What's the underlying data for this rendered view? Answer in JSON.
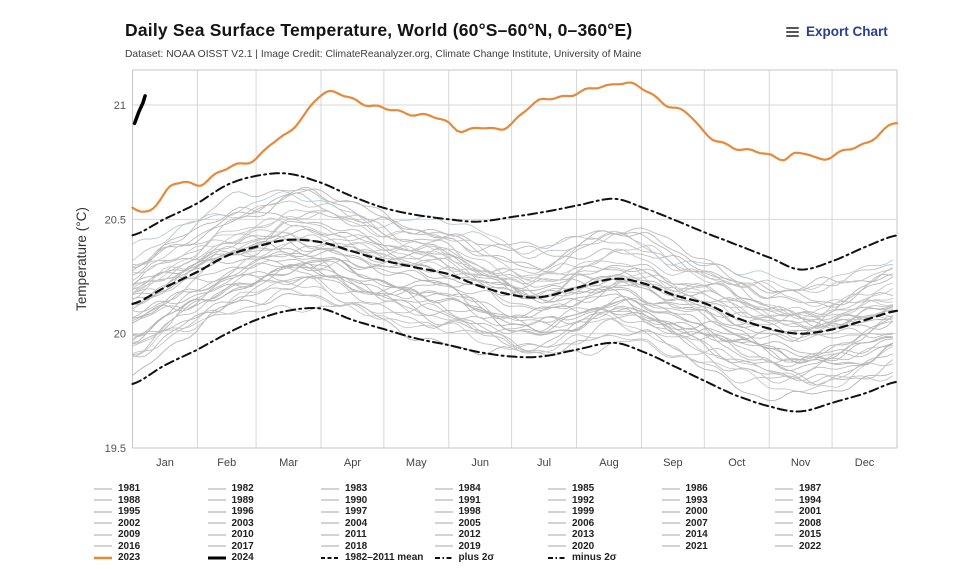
{
  "header": {
    "title": "Daily Sea Surface Temperature, World (60°S–60°N, 0–360°E)",
    "subtitle": "Dataset: NOAA OISST V2.1 | Image Credit: ClimateReanalyzer.org, Climate Change Institute, University of Maine",
    "export_label": "Export Chart"
  },
  "chart_data": {
    "type": "line",
    "title": "Daily Sea Surface Temperature, World (60°S–60°N, 0–360°E)",
    "ylabel": "Temperature (°C)",
    "ylim": [
      19.5,
      21.17
    ],
    "grid": true,
    "y_ticks": [
      {
        "value": 21,
        "label": "21"
      },
      {
        "value": 20.5,
        "label": "20.5"
      },
      {
        "value": 20,
        "label": "20"
      },
      {
        "value": 19.5,
        "label": "19.5"
      }
    ],
    "x_tick_labels": [
      "Jan",
      "Feb",
      "Mar",
      "Apr",
      "May",
      "Jun",
      "Jul",
      "Aug",
      "Sep",
      "Oct",
      "Nov",
      "Dec"
    ],
    "month_start_days": [
      0,
      31,
      59,
      90,
      120,
      151,
      181,
      212,
      243,
      273,
      304,
      334,
      365
    ],
    "colors": {
      "orange_2023": "#e5893a",
      "black_2024": "#000000",
      "dashed_black": "#111111",
      "year_gray": "#c6c6c6",
      "year_2016_tint": "#b9cbdd",
      "grid_interior": "#d7d7d7",
      "grid_border": "#c6c6c6",
      "tick_text": "#555555",
      "month_text": "#444444",
      "axis_title_text": "#333333"
    },
    "series": [
      {
        "name": "2023",
        "style": "solid",
        "color": "#e5893a",
        "width": 2.2,
        "days": [
          0,
          4,
          8,
          13,
          18,
          24,
          31,
          38,
          45,
          52,
          59,
          66,
          74,
          82,
          89,
          96,
          105,
          113,
          121,
          129,
          142,
          151,
          157,
          165,
          172,
          179,
          188,
          196,
          205,
          212,
          220,
          228,
          232,
          238,
          247,
          256,
          265,
          273,
          281,
          290,
          298,
          303,
          311,
          316,
          322,
          327,
          332,
          341,
          351,
          359,
          365
        ],
        "values": [
          20.55,
          20.53,
          20.54,
          20.59,
          20.64,
          20.66,
          20.65,
          20.69,
          20.72,
          20.74,
          20.77,
          20.83,
          20.87,
          20.96,
          21.04,
          21.05,
          21.03,
          21.0,
          20.98,
          20.97,
          20.95,
          20.92,
          20.89,
          20.9,
          20.89,
          20.91,
          20.98,
          21.02,
          21.04,
          21.05,
          21.07,
          21.09,
          21.1,
          21.09,
          21.05,
          21.0,
          20.96,
          20.88,
          20.84,
          20.8,
          20.8,
          20.79,
          20.76,
          20.78,
          20.79,
          20.77,
          20.77,
          20.8,
          20.84,
          20.89,
          20.92
        ]
      },
      {
        "name": "2024",
        "style": "solid",
        "color": "#000000",
        "width": 3.5,
        "days": [
          1,
          3,
          5,
          6
        ],
        "values": [
          20.92,
          20.97,
          21.01,
          21.04
        ]
      },
      {
        "name": "1982–2011 mean",
        "style": "dashed",
        "color": "#111111",
        "width": 2.2,
        "days": [
          0,
          15,
          31,
          45,
          59,
          74,
          90,
          105,
          120,
          135,
          151,
          165,
          181,
          195,
          212,
          230,
          244,
          258,
          274,
          288,
          305,
          319,
          335,
          350,
          365
        ],
        "values": [
          20.13,
          20.2,
          20.27,
          20.34,
          20.38,
          20.41,
          20.4,
          20.36,
          20.32,
          20.29,
          20.26,
          20.21,
          20.17,
          20.16,
          20.2,
          20.24,
          20.22,
          20.17,
          20.13,
          20.07,
          20.02,
          20.0,
          20.02,
          20.06,
          20.1
        ]
      },
      {
        "name": "plus 2σ",
        "style": "dashdot",
        "color": "#111111",
        "width": 2,
        "days": [
          0,
          15,
          31,
          45,
          59,
          74,
          90,
          105,
          120,
          135,
          151,
          165,
          181,
          195,
          212,
          230,
          244,
          258,
          274,
          288,
          305,
          319,
          335,
          350,
          365
        ],
        "values": [
          20.43,
          20.5,
          20.57,
          20.65,
          20.69,
          20.7,
          20.66,
          20.6,
          20.55,
          20.52,
          20.5,
          20.49,
          20.51,
          20.53,
          20.56,
          20.59,
          20.55,
          20.5,
          20.44,
          20.39,
          20.33,
          20.28,
          20.32,
          20.38,
          20.43
        ]
      },
      {
        "name": "minus 2σ",
        "style": "dashdot",
        "color": "#111111",
        "width": 2,
        "days": [
          0,
          15,
          31,
          45,
          59,
          74,
          90,
          105,
          120,
          135,
          151,
          165,
          181,
          195,
          212,
          230,
          244,
          258,
          274,
          288,
          305,
          319,
          335,
          350,
          365
        ],
        "values": [
          19.78,
          19.86,
          19.93,
          20.0,
          20.06,
          20.1,
          20.11,
          20.06,
          20.02,
          19.98,
          19.95,
          19.92,
          19.9,
          19.9,
          19.93,
          19.96,
          19.92,
          19.86,
          19.79,
          19.73,
          19.68,
          19.66,
          19.7,
          19.74,
          19.79
        ]
      }
    ],
    "background_years": {
      "note": "annual offset (°C) relative to 1982–2011 mean seasonal curve",
      "years": [
        {
          "year": 1981,
          "offset": -0.18
        },
        {
          "year": 1982,
          "offset": -0.22
        },
        {
          "year": 1983,
          "offset": -0.12
        },
        {
          "year": 1984,
          "offset": -0.25
        },
        {
          "year": 1985,
          "offset": -0.26
        },
        {
          "year": 1986,
          "offset": -0.19
        },
        {
          "year": 1987,
          "offset": -0.1
        },
        {
          "year": 1988,
          "offset": -0.16
        },
        {
          "year": 1989,
          "offset": -0.22
        },
        {
          "year": 1990,
          "offset": -0.12
        },
        {
          "year": 1991,
          "offset": -0.11
        },
        {
          "year": 1992,
          "offset": -0.18
        },
        {
          "year": 1993,
          "offset": -0.14
        },
        {
          "year": 1994,
          "offset": -0.12
        },
        {
          "year": 1995,
          "offset": -0.06
        },
        {
          "year": 1996,
          "offset": -0.13
        },
        {
          "year": 1997,
          "offset": -0.02
        },
        {
          "year": 1998,
          "offset": 0.04
        },
        {
          "year": 1999,
          "offset": -0.11
        },
        {
          "year": 2000,
          "offset": -0.09
        },
        {
          "year": 2001,
          "offset": -0.02
        },
        {
          "year": 2002,
          "offset": 0.02
        },
        {
          "year": 2003,
          "offset": 0.04
        },
        {
          "year": 2004,
          "offset": 0.03
        },
        {
          "year": 2005,
          "offset": 0.05
        },
        {
          "year": 2006,
          "offset": 0.04
        },
        {
          "year": 2007,
          "offset": 0.01
        },
        {
          "year": 2008,
          "offset": -0.01
        },
        {
          "year": 2009,
          "offset": 0.05
        },
        {
          "year": 2010,
          "offset": 0.08
        },
        {
          "year": 2011,
          "offset": -0.03
        },
        {
          "year": 2012,
          "offset": 0.02
        },
        {
          "year": 2013,
          "offset": 0.06
        },
        {
          "year": 2014,
          "offset": 0.1
        },
        {
          "year": 2015,
          "offset": 0.16
        },
        {
          "year": 2016,
          "offset": 0.2
        },
        {
          "year": 2017,
          "offset": 0.16
        },
        {
          "year": 2018,
          "offset": 0.12
        },
        {
          "year": 2019,
          "offset": 0.17
        },
        {
          "year": 2020,
          "offset": 0.2
        },
        {
          "year": 2021,
          "offset": 0.13
        },
        {
          "year": 2022,
          "offset": 0.17
        }
      ]
    }
  },
  "legend": {
    "year_rows": [
      [
        "1981",
        "1982",
        "1983",
        "1984",
        "1985",
        "1986",
        "1987"
      ],
      [
        "1988",
        "1989",
        "1990",
        "1991",
        "1992",
        "1993",
        "1994"
      ],
      [
        "1995",
        "1996",
        "1997",
        "1998",
        "1999",
        "2000",
        "2001"
      ],
      [
        "2002",
        "2003",
        "2004",
        "2005",
        "2006",
        "2007",
        "2008"
      ],
      [
        "2009",
        "2010",
        "2011",
        "2012",
        "2013",
        "2014",
        "2015"
      ],
      [
        "2016",
        "2017",
        "2018",
        "2019",
        "2020",
        "2021",
        "2022"
      ]
    ],
    "special_row": [
      {
        "label": "2023",
        "style": "y2023"
      },
      {
        "label": "2024",
        "style": "y2024"
      },
      {
        "label": "1982–2011 mean",
        "style": "mean"
      },
      {
        "label": "plus 2σ",
        "style": "sigma"
      },
      {
        "label": "minus 2σ",
        "style": "sigma"
      }
    ]
  }
}
